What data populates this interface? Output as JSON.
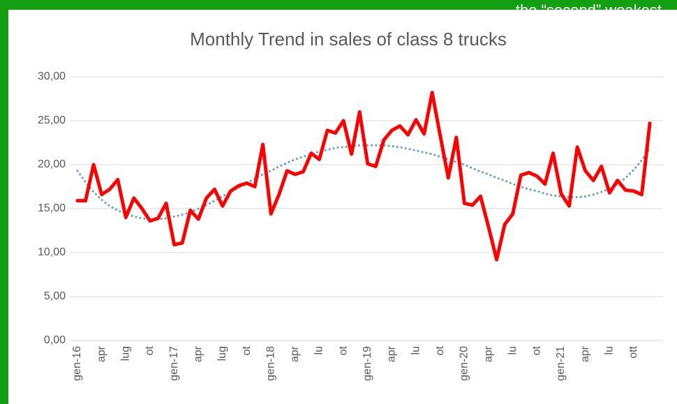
{
  "banner": "the “second” weakest",
  "chart_data": {
    "type": "line",
    "title": "Monthly Trend in sales of class 8 trucks",
    "categories": [
      "gen-16",
      null,
      null,
      "apr",
      null,
      null,
      "lug",
      null,
      null,
      "ot",
      null,
      null,
      "gen-17",
      null,
      null,
      "apr",
      null,
      null,
      "lug",
      null,
      null,
      "ot",
      null,
      null,
      "gen-18",
      null,
      null,
      "apr",
      null,
      null,
      "lu",
      null,
      null,
      "ot",
      null,
      null,
      "gen-19",
      null,
      null,
      "apr",
      null,
      null,
      "lu",
      null,
      null,
      "ot",
      null,
      null,
      "gen-20",
      null,
      null,
      "apr",
      null,
      null,
      "lu",
      null,
      null,
      "ot",
      null,
      null,
      "gen-21",
      null,
      null,
      "apr",
      null,
      null,
      "lu",
      null,
      null,
      "ott",
      null,
      null
    ],
    "series": [
      {
        "color": "#ff0000",
        "width": 5,
        "dash": false,
        "values": [
          15.9,
          15.9,
          20.0,
          16.6,
          17.2,
          18.3,
          14.0,
          16.2,
          15.0,
          13.6,
          13.9,
          15.6,
          10.9,
          11.1,
          14.8,
          13.8,
          16.2,
          17.2,
          15.3,
          17.0,
          17.6,
          17.9,
          17.5,
          22.3,
          14.4,
          16.6,
          19.3,
          18.9,
          19.2,
          21.3,
          20.6,
          23.9,
          23.6,
          25.0,
          21.2,
          26.0,
          20.1,
          19.8,
          22.8,
          23.9,
          24.4,
          23.4,
          25.1,
          23.5,
          28.2,
          23.3,
          18.5,
          23.1,
          15.6,
          15.4,
          16.4,
          12.9,
          9.2,
          13.2,
          14.4,
          18.8,
          19.1,
          18.7,
          17.8,
          21.3,
          16.7,
          15.3,
          22.0,
          19.3,
          18.2,
          19.8,
          16.8,
          18.2,
          17.1,
          17.0,
          16.6,
          24.7
        ]
      },
      {
        "color": "#5b9bd5",
        "width": 3,
        "dash": true,
        "values": [
          19.3,
          18.0,
          16.9,
          16.0,
          15.3,
          14.8,
          14.4,
          14.1,
          13.9,
          13.8,
          13.8,
          13.9,
          14.1,
          14.3,
          14.6,
          15.0,
          15.4,
          15.9,
          16.4,
          16.9,
          17.4,
          17.9,
          18.4,
          18.9,
          19.3,
          19.8,
          20.2,
          20.6,
          20.9,
          21.2,
          21.5,
          21.7,
          21.9,
          22.0,
          22.1,
          22.2,
          22.2,
          22.2,
          22.2,
          22.1,
          22.0,
          21.8,
          21.6,
          21.4,
          21.2,
          20.9,
          20.6,
          20.3,
          20.0,
          19.6,
          19.2,
          18.9,
          18.5,
          18.2,
          17.8,
          17.5,
          17.2,
          17.0,
          16.7,
          16.5,
          16.4,
          16.3,
          16.3,
          16.4,
          16.6,
          16.9,
          17.3,
          17.8,
          18.5,
          19.4,
          20.5,
          21.9
        ]
      }
    ],
    "ylim": [
      0,
      30
    ],
    "yticks": [
      {
        "value": 0,
        "label": "0,00"
      },
      {
        "value": 5,
        "label": "5,00"
      },
      {
        "value": 10,
        "label": "10,00"
      },
      {
        "value": 15,
        "label": "15,00"
      },
      {
        "value": 20,
        "label": "20,00"
      },
      {
        "value": 25,
        "label": "25,00"
      },
      {
        "value": 30,
        "label": "30,00"
      }
    ],
    "grid": true
  }
}
